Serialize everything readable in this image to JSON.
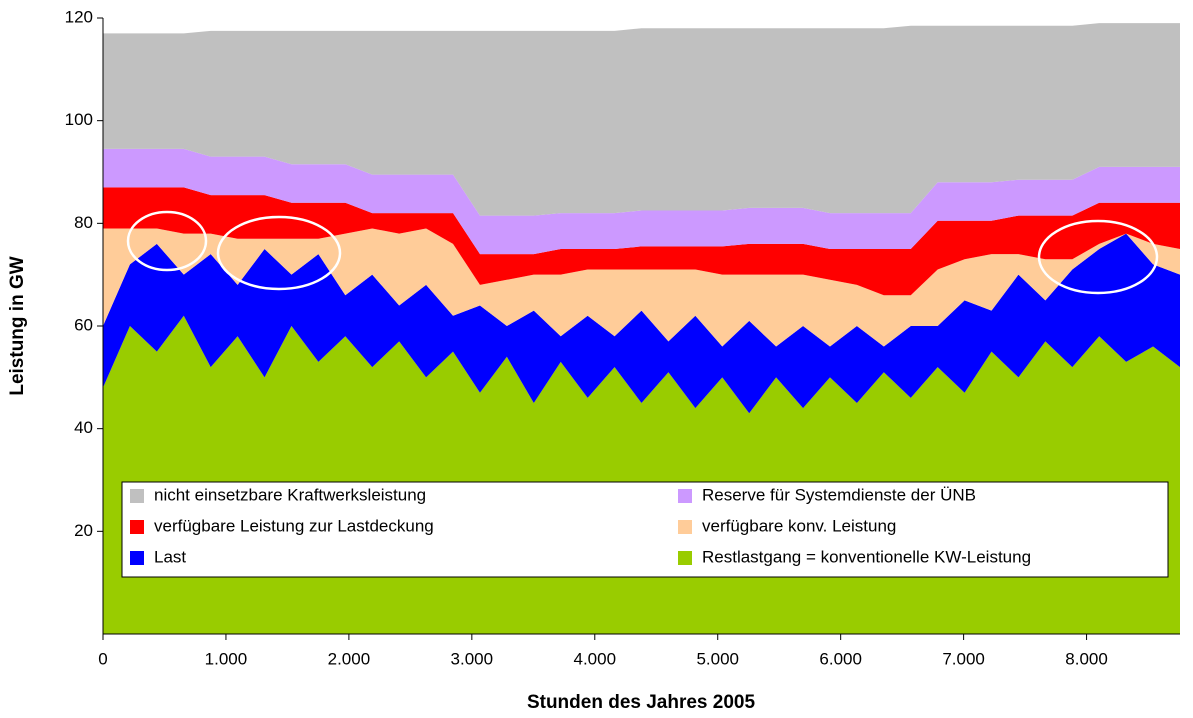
{
  "chart_data": {
    "type": "stacked-area",
    "x_label": "Stunden des Jahres 2005",
    "y_label": "Leistung in GW",
    "x": [
      0,
      219,
      438,
      657,
      876,
      1095,
      1314,
      1533,
      1752,
      1971,
      2190,
      2409,
      2628,
      2847,
      3066,
      3285,
      3504,
      3723,
      3942,
      4161,
      4380,
      4599,
      4818,
      5037,
      5256,
      5475,
      5694,
      5913,
      6132,
      6351,
      6570,
      6789,
      7008,
      7227,
      7446,
      7665,
      7884,
      8103,
      8322,
      8541,
      8760
    ],
    "xlim": [
      0,
      8760
    ],
    "xticks": [
      0,
      {
        "value": 1000,
        "label": "1.000"
      },
      {
        "value": 2000,
        "label": "2.000"
      },
      {
        "value": 3000,
        "label": "3.000"
      },
      {
        "value": 4000,
        "label": "4.000"
      },
      {
        "value": 5000,
        "label": "5.000"
      },
      {
        "value": 6000,
        "label": "6.000"
      },
      {
        "value": 7000,
        "label": "7.000"
      },
      {
        "value": 8000,
        "label": "8.000"
      }
    ],
    "ylim": [
      0,
      120
    ],
    "yticks": [
      20,
      40,
      60,
      80,
      100,
      120
    ],
    "series": [
      {
        "name": "Restlastgang = konventionelle KW-Leistung",
        "color": "#99cc00",
        "values": [
          48,
          60,
          55,
          62,
          52,
          58,
          50,
          60,
          53,
          58,
          52,
          57,
          50,
          55,
          47,
          54,
          45,
          53,
          46,
          52,
          45,
          51,
          44,
          50,
          43,
          50,
          44,
          50,
          45,
          51,
          46,
          52,
          47,
          55,
          50,
          57,
          52,
          58,
          53,
          56,
          52
        ]
      },
      {
        "name": "Last",
        "color": "#0000ff",
        "values": [
          12,
          12,
          21,
          8,
          22,
          10,
          25,
          10,
          21,
          8,
          18,
          7,
          18,
          7,
          17,
          6,
          18,
          5,
          16,
          6,
          18,
          6,
          18,
          6,
          18,
          6,
          16,
          6,
          15,
          5,
          14,
          8,
          18,
          8,
          20,
          8,
          19,
          17,
          25,
          16,
          18
        ]
      },
      {
        "name": "verfügbare konv. Leistung",
        "color": "#ffcc99",
        "values": [
          19,
          7,
          3,
          8,
          4,
          9,
          2,
          7,
          3,
          12,
          9,
          14,
          11,
          14,
          4,
          9,
          7,
          12,
          9,
          13,
          8,
          14,
          9,
          14,
          9,
          14,
          10,
          13,
          8,
          10,
          6,
          11,
          8,
          11,
          4,
          8,
          2,
          1,
          0,
          4,
          5
        ]
      },
      {
        "name": "verfügbare Leistung zur Lastdeckung",
        "color": "#ff0000",
        "values": [
          8,
          8,
          8,
          9,
          7.5,
          8.5,
          8.5,
          7,
          7,
          6,
          3,
          4,
          3,
          6,
          6,
          5,
          4,
          5,
          4,
          4,
          4.5,
          4.5,
          4.5,
          5.5,
          6,
          6,
          6,
          6,
          7,
          9,
          9,
          9.5,
          7.5,
          6.5,
          7.5,
          8.5,
          8.5,
          8,
          6,
          8,
          9
        ]
      },
      {
        "name": "Reserve für Systemdienste der ÜNB",
        "color": "#cc99ff",
        "values": [
          7.5,
          7.5,
          7.5,
          7.5,
          7.5,
          7.5,
          7.5,
          7.5,
          7.5,
          7.5,
          7.5,
          7.5,
          7.5,
          7.5,
          7.5,
          7.5,
          7.5,
          7,
          7,
          7,
          7,
          7,
          7,
          7,
          7,
          7,
          7,
          7,
          7,
          7,
          7,
          7.5,
          7.5,
          7.5,
          7,
          7,
          7,
          7,
          7,
          7,
          7
        ]
      },
      {
        "name": "nicht einsetzbare Kraftwerksleistung",
        "color": "#c0c0c0",
        "values": [
          22.5,
          22.5,
          22.5,
          22.5,
          24.5,
          24.5,
          24.5,
          26,
          26,
          26,
          28,
          28,
          28,
          28,
          36,
          36,
          36,
          35.5,
          35.5,
          35.5,
          35.5,
          35.5,
          35.5,
          35.5,
          35,
          35,
          35,
          36,
          36,
          36,
          36.5,
          30.5,
          30.5,
          30.5,
          30,
          30,
          30,
          28,
          28,
          28,
          28
        ]
      }
    ]
  }
}
